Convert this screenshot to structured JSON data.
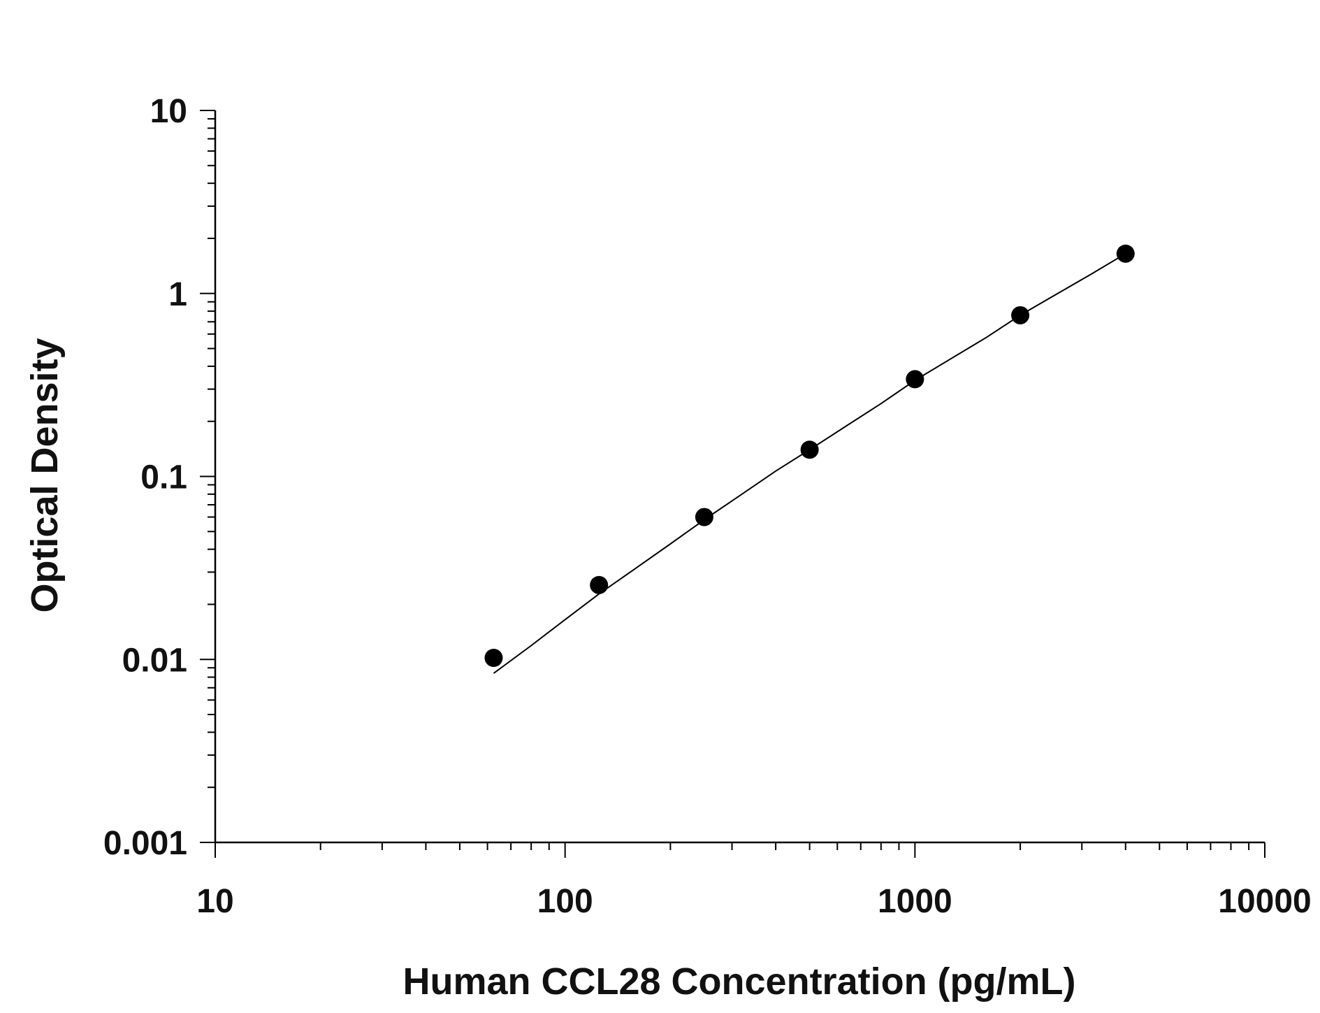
{
  "chart_data": {
    "type": "scatter",
    "title": "",
    "xlabel": "Human CCL28 Concentration (pg/mL)",
    "ylabel": "Optical Density",
    "x_scale": "log",
    "y_scale": "log",
    "xlim": [
      10,
      10000
    ],
    "ylim": [
      0.001,
      10
    ],
    "x_ticks": [
      "10",
      "100",
      "1000",
      "10000"
    ],
    "y_ticks": [
      "0.001",
      "0.01",
      "0.1",
      "1",
      "10"
    ],
    "grid": false,
    "legend": "none",
    "series": [
      {
        "marker": "filled-circle",
        "x": [
          62.5,
          125,
          250,
          500,
          1000,
          2000,
          4000
        ],
        "y": [
          0.0102,
          0.0255,
          0.06,
          0.14,
          0.34,
          0.76,
          1.65
        ]
      }
    ],
    "fit_curve": {
      "style": "line",
      "x": [
        62.5,
        80,
        100,
        125,
        160,
        200,
        250,
        320,
        400,
        500,
        640,
        800,
        1000,
        1280,
        1600,
        2000,
        2560,
        3200,
        4000
      ],
      "y": [
        0.0084,
        0.0119,
        0.0165,
        0.0228,
        0.0317,
        0.0428,
        0.058,
        0.08,
        0.107,
        0.14,
        0.19,
        0.25,
        0.335,
        0.445,
        0.575,
        0.76,
        1.0,
        1.28,
        1.65
      ]
    },
    "colors": {
      "marker": "#000000",
      "line": "#000000",
      "axis": "#000000"
    }
  }
}
